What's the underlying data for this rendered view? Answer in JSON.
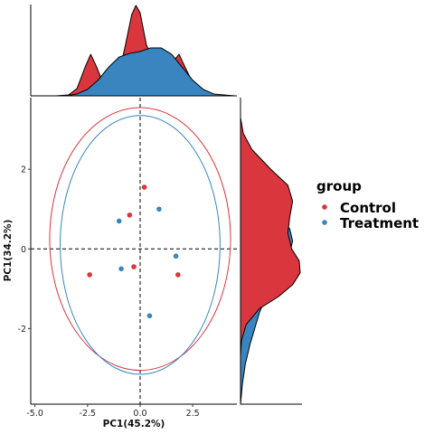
{
  "chart_data": {
    "type": "scatter",
    "xlabel": "PC1(45.2%)",
    "ylabel": "PC1(34.2%)",
    "xlim": [
      -5.2,
      4.6
    ],
    "ylim": [
      -3.9,
      3.8
    ],
    "x_ticks": [
      -5.0,
      -2.5,
      0.0,
      2.5
    ],
    "x_tick_labels": [
      "-5.0",
      "-2.5",
      "0.0",
      "2.5"
    ],
    "y_ticks": [
      -2,
      0,
      2
    ],
    "y_tick_labels": [
      "-2",
      "0",
      "2"
    ],
    "reference_lines": {
      "x": 0,
      "y": 0,
      "style": "dashed"
    },
    "grid": false,
    "legend": {
      "title": "group",
      "position": "right"
    },
    "series": [
      {
        "name": "Control",
        "color": "#d9363e",
        "points": [
          {
            "x": 0.2,
            "y": 1.55
          },
          {
            "x": -0.5,
            "y": 0.85
          },
          {
            "x": -2.4,
            "y": -0.65
          },
          {
            "x": -0.3,
            "y": -0.45
          },
          {
            "x": 1.8,
            "y": -0.65
          }
        ],
        "ellipse": {
          "cx": 0.0,
          "cy": 0.25,
          "rx": 4.3,
          "ry": 3.3
        }
      },
      {
        "name": "Treatment",
        "color": "#3a85c0",
        "points": [
          {
            "x": 0.9,
            "y": 1.0
          },
          {
            "x": -1.0,
            "y": 0.7
          },
          {
            "x": 1.7,
            "y": -0.18
          },
          {
            "x": -0.9,
            "y": -0.5
          },
          {
            "x": 0.45,
            "y": -1.68
          }
        ],
        "ellipse": {
          "cx": 0.0,
          "cy": 0.1,
          "rx": 3.8,
          "ry": 3.25
        }
      }
    ],
    "marginal_density": {
      "top": {
        "Control": [
          [
            -4.0,
            0.0
          ],
          [
            -3.4,
            0.01
          ],
          [
            -3.0,
            0.08
          ],
          [
            -2.6,
            0.32
          ],
          [
            -2.35,
            0.45
          ],
          [
            -2.1,
            0.33
          ],
          [
            -1.8,
            0.16
          ],
          [
            -1.4,
            0.12
          ],
          [
            -1.0,
            0.24
          ],
          [
            -0.7,
            0.55
          ],
          [
            -0.4,
            0.88
          ],
          [
            -0.2,
            0.98
          ],
          [
            0.0,
            0.9
          ],
          [
            0.3,
            0.55
          ],
          [
            0.7,
            0.37
          ],
          [
            1.2,
            0.33
          ],
          [
            1.6,
            0.38
          ],
          [
            1.85,
            0.45
          ],
          [
            2.1,
            0.33
          ],
          [
            2.5,
            0.14
          ],
          [
            3.0,
            0.03
          ],
          [
            3.5,
            0.0
          ]
        ],
        "Treatment": [
          [
            -3.6,
            0.0
          ],
          [
            -3.0,
            0.02
          ],
          [
            -2.5,
            0.07
          ],
          [
            -2.0,
            0.17
          ],
          [
            -1.5,
            0.31
          ],
          [
            -1.0,
            0.42
          ],
          [
            -0.5,
            0.46
          ],
          [
            0.0,
            0.48
          ],
          [
            0.5,
            0.52
          ],
          [
            1.0,
            0.52
          ],
          [
            1.5,
            0.45
          ],
          [
            2.0,
            0.31
          ],
          [
            2.5,
            0.17
          ],
          [
            3.0,
            0.07
          ],
          [
            3.5,
            0.02
          ],
          [
            4.5,
            0.0
          ]
        ]
      },
      "right": {
        "Control": [
          [
            3.3,
            0.0
          ],
          [
            2.9,
            0.03
          ],
          [
            2.5,
            0.12
          ],
          [
            2.0,
            0.32
          ],
          [
            1.6,
            0.5
          ],
          [
            1.2,
            0.55
          ],
          [
            0.8,
            0.52
          ],
          [
            0.4,
            0.5
          ],
          [
            0.0,
            0.54
          ],
          [
            -0.3,
            0.62
          ],
          [
            -0.6,
            0.63
          ],
          [
            -0.9,
            0.55
          ],
          [
            -1.2,
            0.4
          ],
          [
            -1.5,
            0.2
          ],
          [
            -1.9,
            0.06
          ],
          [
            -2.3,
            0.01
          ],
          [
            -2.7,
            0.0
          ]
        ],
        "Treatment": [
          [
            1.9,
            0.0
          ],
          [
            1.6,
            0.07
          ],
          [
            1.3,
            0.2
          ],
          [
            0.9,
            0.4
          ],
          [
            0.5,
            0.52
          ],
          [
            0.2,
            0.55
          ],
          [
            -0.1,
            0.52
          ],
          [
            -0.4,
            0.45
          ],
          [
            -0.8,
            0.36
          ],
          [
            -1.2,
            0.27
          ],
          [
            -1.6,
            0.2
          ],
          [
            -2.0,
            0.15
          ],
          [
            -2.4,
            0.1
          ],
          [
            -2.9,
            0.05
          ],
          [
            -3.4,
            0.02
          ],
          [
            -3.9,
            0.0
          ]
        ]
      }
    }
  }
}
